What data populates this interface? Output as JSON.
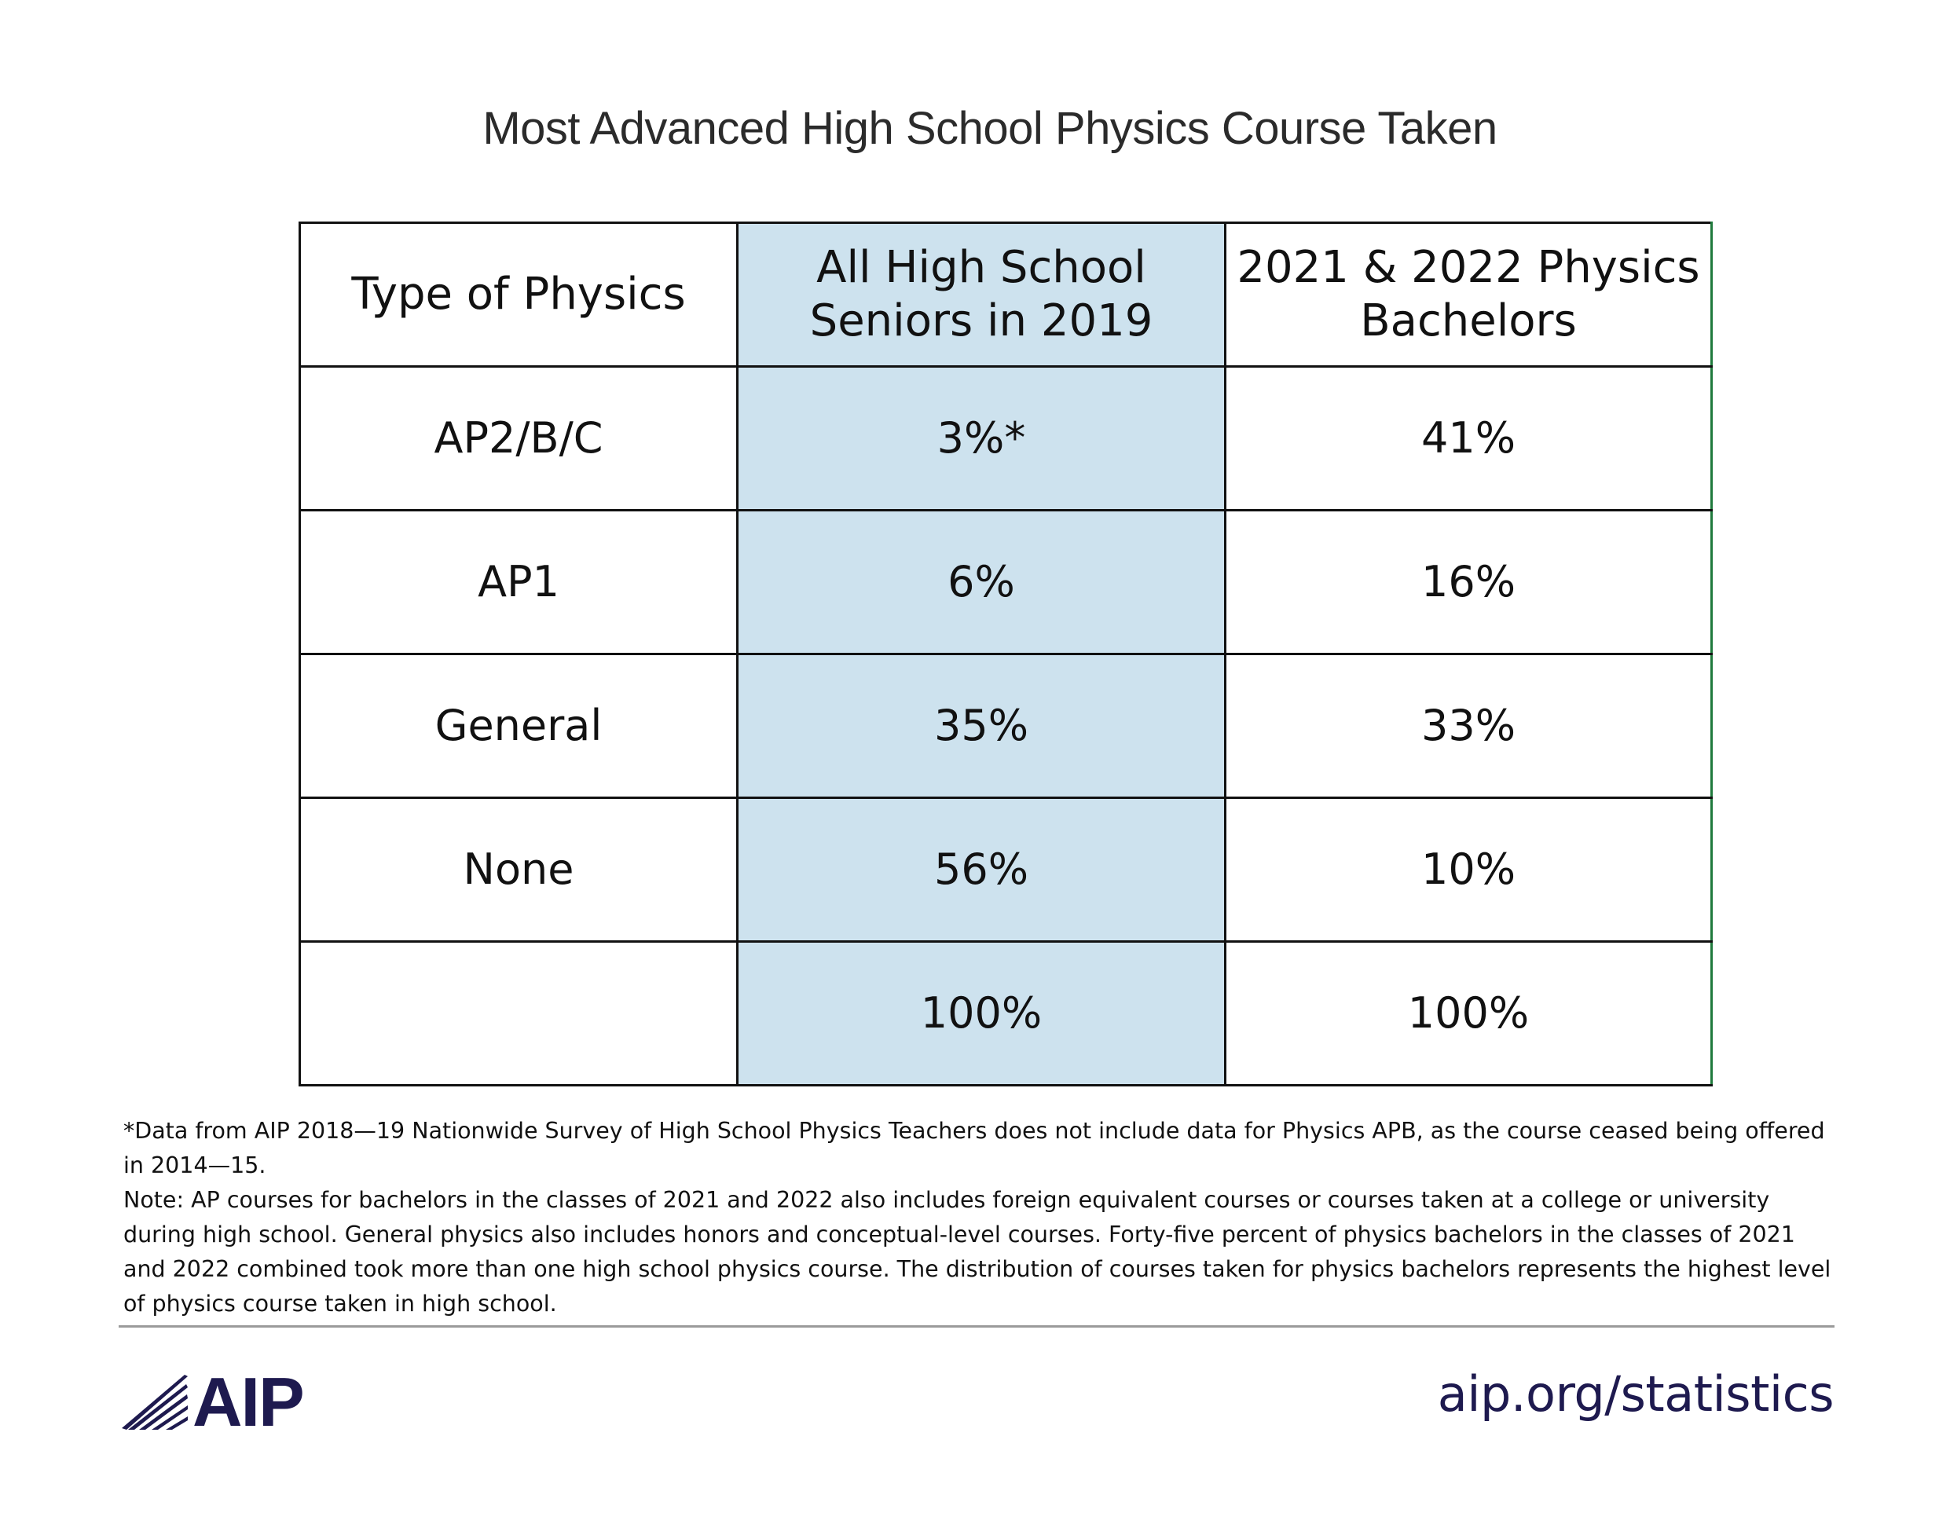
{
  "chart_data": {
    "type": "table",
    "title": "Most Advanced High School Physics Course Taken",
    "columns": [
      "Type of Physics",
      "All High School Seniors in 2019",
      "2021 & 2022 Physics Bachelors"
    ],
    "column_lines": [
      [
        "Type of Physics"
      ],
      [
        "All High School",
        "Seniors in 2019"
      ],
      [
        "2021 & 2022 Physics",
        "Bachelors"
      ]
    ],
    "rows": [
      [
        "AP2/B/C",
        "3%*",
        "41%"
      ],
      [
        "AP1",
        "6%",
        "16%"
      ],
      [
        "General",
        "35%",
        "33%"
      ],
      [
        "None",
        "56%",
        "10%"
      ],
      [
        "",
        "100%",
        "100%"
      ]
    ],
    "highlight_column_color": "#cde2ee"
  },
  "footnotes": {
    "asterisk_note": "*Data from AIP 2018—19 Nationwide Survey of High School Physics Teachers does not include data for Physics APB, as the course ceased being offered in 2014—15.",
    "note": "Note: AP courses for bachelors in the classes of 2021 and 2022 also includes foreign equivalent courses or courses taken at a college or university during high school. General physics also includes honors and conceptual-level courses. Forty-five percent of physics bachelors in the classes of 2021 and 2022 combined took more than one high school physics course. The  distribution of courses taken for physics bachelors represents the highest level of physics course taken in high school."
  },
  "footer": {
    "logo_text": "AIP",
    "logo_icon": "aip-rays-icon",
    "link_text": "aip.org/statistics",
    "brand_color": "#1e1a4f"
  }
}
